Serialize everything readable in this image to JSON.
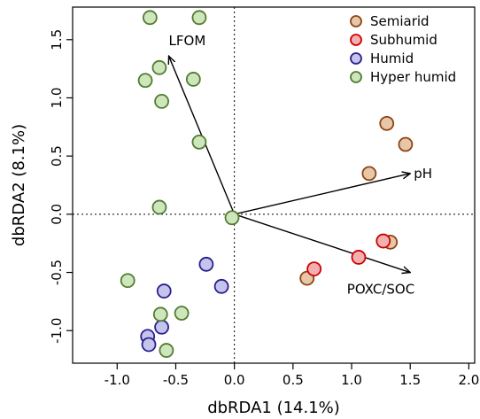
{
  "chart_data": {
    "type": "scatter",
    "xlabel": "dbRDA1 (14.1%)",
    "ylabel": "dbRDA2 (8.1%)",
    "xlim": [
      -1.38,
      2.05
    ],
    "ylim": [
      -1.28,
      1.78
    ],
    "x_ticks": [
      -1.0,
      -0.5,
      0.0,
      0.5,
      1.0,
      1.5,
      2.0
    ],
    "y_ticks": [
      -1.0,
      -0.5,
      0.0,
      0.5,
      1.0,
      1.5
    ],
    "x_tick_labels": [
      "-1.0",
      "-0.5",
      "0.0",
      "0.5",
      "1.0",
      "1.5",
      "2.0"
    ],
    "y_tick_labels": [
      "-1.0",
      "-0.5",
      "0.0",
      "0.5",
      "1.0",
      "1.5"
    ],
    "reference_lines": {
      "x": 0,
      "y": 0,
      "style": "dotted"
    },
    "legend": {
      "position": "top-right"
    },
    "series": [
      {
        "name": "Semiarid",
        "fill": "#e8c6a8",
        "stroke": "#8b4513",
        "points": [
          {
            "x": 1.3,
            "y": 0.78
          },
          {
            "x": 1.46,
            "y": 0.6
          },
          {
            "x": 1.15,
            "y": 0.35
          },
          {
            "x": 1.33,
            "y": -0.24
          },
          {
            "x": 0.62,
            "y": -0.55
          }
        ]
      },
      {
        "name": "Subhumid",
        "fill": "#f4b0b0",
        "stroke": "#cc0000",
        "points": [
          {
            "x": 1.27,
            "y": -0.23
          },
          {
            "x": 1.06,
            "y": -0.37
          },
          {
            "x": 0.68,
            "y": -0.47
          }
        ]
      },
      {
        "name": "Humid",
        "fill": "#c4c4ec",
        "stroke": "#2a1f8c",
        "points": [
          {
            "x": -0.24,
            "y": -0.43
          },
          {
            "x": -0.11,
            "y": -0.62
          },
          {
            "x": -0.6,
            "y": -0.66
          },
          {
            "x": -0.62,
            "y": -0.97
          },
          {
            "x": -0.74,
            "y": -1.05
          },
          {
            "x": -0.73,
            "y": -1.12
          }
        ]
      },
      {
        "name": "Hyper humid",
        "fill": "#cfe6bd",
        "stroke": "#4f7d30",
        "points": [
          {
            "x": -0.72,
            "y": 1.69
          },
          {
            "x": -0.3,
            "y": 1.69
          },
          {
            "x": -0.64,
            "y": 1.26
          },
          {
            "x": -0.76,
            "y": 1.15
          },
          {
            "x": -0.35,
            "y": 1.16
          },
          {
            "x": -0.62,
            "y": 0.97
          },
          {
            "x": -0.3,
            "y": 0.62
          },
          {
            "x": -0.64,
            "y": 0.06
          },
          {
            "x": -0.02,
            "y": -0.03
          },
          {
            "x": -0.91,
            "y": -0.57
          },
          {
            "x": -0.45,
            "y": -0.85
          },
          {
            "x": -0.63,
            "y": -0.86
          },
          {
            "x": -0.58,
            "y": -1.17
          }
        ]
      }
    ],
    "vectors": [
      {
        "name": "LFOM",
        "x": -0.56,
        "y": 1.36
      },
      {
        "name": "pH",
        "x": 1.5,
        "y": 0.35
      },
      {
        "name": "POXC/SOC",
        "x": 1.5,
        "y": -0.5
      }
    ]
  }
}
